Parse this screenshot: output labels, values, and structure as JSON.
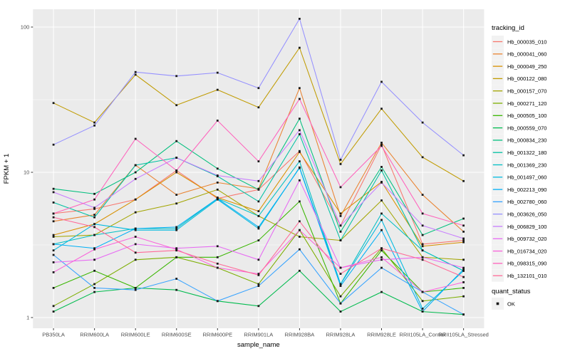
{
  "chart_data": {
    "type": "line",
    "title": "",
    "xlabel": "sample_name",
    "ylabel": "FPKM + 1",
    "y_scale": "log10",
    "y_tick_labels": [
      "100",
      "10",
      "1"
    ],
    "y_ticks": [
      100,
      10,
      1
    ],
    "y_minor_ticks": [
      31.62,
      3.162
    ],
    "ylim": [
      0.85,
      135
    ],
    "grid": "white-on-gray",
    "legend_position": "right",
    "legend_title": "tracking_id",
    "categories": [
      "PB350LA",
      "RRIM600LA",
      "RRIM600LE",
      "RRIM600SE",
      "RRIM600PE",
      "RRIM901LA",
      "RRIM928BA",
      "RRIM928LA",
      "RRIM928LE",
      "RRII105LA_Control",
      "RRII105LA_Stressed"
    ],
    "series": [
      {
        "name": "Hb_000035_010",
        "color": "#F8766D",
        "values": [
          5.2,
          5.6,
          6.5,
          10.3,
          6.6,
          7.6,
          14.0,
          4.3,
          15.5,
          3.2,
          3.4
        ]
      },
      {
        "name": "Hb_000041_060",
        "color": "#EA8331",
        "values": [
          4.6,
          5.1,
          11.2,
          7.0,
          8.5,
          7.7,
          38.0,
          5.0,
          16.0,
          7.0,
          3.9
        ]
      },
      {
        "name": "Hb_000049_250",
        "color": "#D89000",
        "values": [
          3.7,
          4.4,
          6.5,
          10.0,
          6.7,
          5.4,
          13.8,
          5.2,
          8.6,
          3.1,
          3.3
        ]
      },
      {
        "name": "Hb_000122_080",
        "color": "#C09B00",
        "values": [
          30.0,
          22.0,
          47.0,
          29.0,
          37.0,
          28.0,
          72.0,
          11.4,
          27.4,
          12.7,
          8.7
        ]
      },
      {
        "name": "Hb_000157_070",
        "color": "#A3A500",
        "values": [
          3.6,
          3.7,
          5.3,
          6.1,
          7.6,
          5.0,
          3.6,
          3.4,
          6.4,
          2.6,
          2.5
        ]
      },
      {
        "name": "Hb_000271_120",
        "color": "#7CAE00",
        "values": [
          1.2,
          1.7,
          2.5,
          2.6,
          2.2,
          1.7,
          4.0,
          1.4,
          3.0,
          1.3,
          1.4
        ]
      },
      {
        "name": "Hb_000505_100",
        "color": "#39B600",
        "values": [
          1.6,
          2.1,
          1.6,
          2.6,
          2.6,
          3.4,
          6.3,
          1.25,
          2.9,
          1.5,
          1.6
        ]
      },
      {
        "name": "Hb_000559_070",
        "color": "#00BB4E",
        "values": [
          1.1,
          1.5,
          1.6,
          1.55,
          1.3,
          1.2,
          2.1,
          1.1,
          1.5,
          1.1,
          1.05
        ]
      },
      {
        "name": "Hb_000834_230",
        "color": "#00BF7D",
        "values": [
          7.7,
          7.1,
          10.0,
          16.4,
          10.6,
          7.6,
          23.4,
          3.9,
          10.9,
          3.7,
          4.8
        ]
      },
      {
        "name": "Hb_001322_180",
        "color": "#00C1A3",
        "values": [
          6.2,
          4.9,
          11.2,
          12.6,
          9.4,
          6.3,
          18.3,
          3.4,
          10.3,
          2.9,
          2.1
        ]
      },
      {
        "name": "Hb_001369_230",
        "color": "#00BFC4",
        "values": [
          3.2,
          3.7,
          4.1,
          4.1,
          6.6,
          5.0,
          11.9,
          1.7,
          5.2,
          2.9,
          2.1
        ]
      },
      {
        "name": "Hb_001497_060",
        "color": "#00BAE0",
        "values": [
          2.9,
          4.4,
          4.0,
          4.0,
          6.5,
          4.1,
          10.8,
          1.7,
          4.7,
          1.15,
          2.1
        ]
      },
      {
        "name": "Hb_002213_090",
        "color": "#00B0F6",
        "values": [
          3.2,
          3.0,
          4.1,
          4.2,
          6.6,
          4.2,
          10.7,
          1.65,
          4.0,
          1.1,
          2.15
        ]
      },
      {
        "name": "Hb_002780_060",
        "color": "#35A2FF",
        "values": [
          2.7,
          1.6,
          1.55,
          1.85,
          1.3,
          1.65,
          2.95,
          1.25,
          2.2,
          1.5,
          1.05
        ]
      },
      {
        "name": "Hb_003626_050",
        "color": "#9590FF",
        "values": [
          15.5,
          21.0,
          49.0,
          46.0,
          48.5,
          38.0,
          114.0,
          12.2,
          42.0,
          22.0,
          13.1
        ]
      },
      {
        "name": "Hb_006829_100",
        "color": "#C77CFF",
        "values": [
          7.3,
          5.7,
          9.0,
          12.6,
          9.5,
          8.7,
          19.5,
          4.3,
          8.5,
          4.3,
          3.5
        ]
      },
      {
        "name": "Hb_009732_020",
        "color": "#E76BF3",
        "values": [
          2.4,
          2.5,
          3.2,
          3.0,
          3.1,
          2.5,
          8.8,
          2.2,
          2.5,
          2.6,
          2.2
        ]
      },
      {
        "name": "Hb_016734_020",
        "color": "#FA62DB",
        "values": [
          2.05,
          2.95,
          3.6,
          2.95,
          2.2,
          2.0,
          4.0,
          2.2,
          2.6,
          1.5,
          1.75
        ]
      },
      {
        "name": "Hb_098315_090",
        "color": "#FF62BC",
        "values": [
          5.2,
          6.5,
          17.0,
          10.3,
          22.7,
          11.9,
          32.0,
          7.9,
          15.2,
          5.2,
          4.3
        ]
      },
      {
        "name": "Hb_132101_010",
        "color": "#FF6A98",
        "values": [
          4.9,
          4.2,
          2.8,
          2.9,
          2.35,
          1.96,
          4.6,
          2.0,
          3.0,
          2.5,
          1.9
        ]
      }
    ],
    "point_legend": {
      "title": "quant_status",
      "items": [
        {
          "label": "OK",
          "marker": "black-square"
        }
      ]
    }
  },
  "colors": {
    "panel_bg": "#EBEBEB",
    "grid": "#FFFFFF",
    "axis_text": "#4D4D4D",
    "title_text": "#000000",
    "legend_key_bg": "#F2F2F2",
    "point": "#1A1A1A",
    "tick_mark": "#333333"
  }
}
